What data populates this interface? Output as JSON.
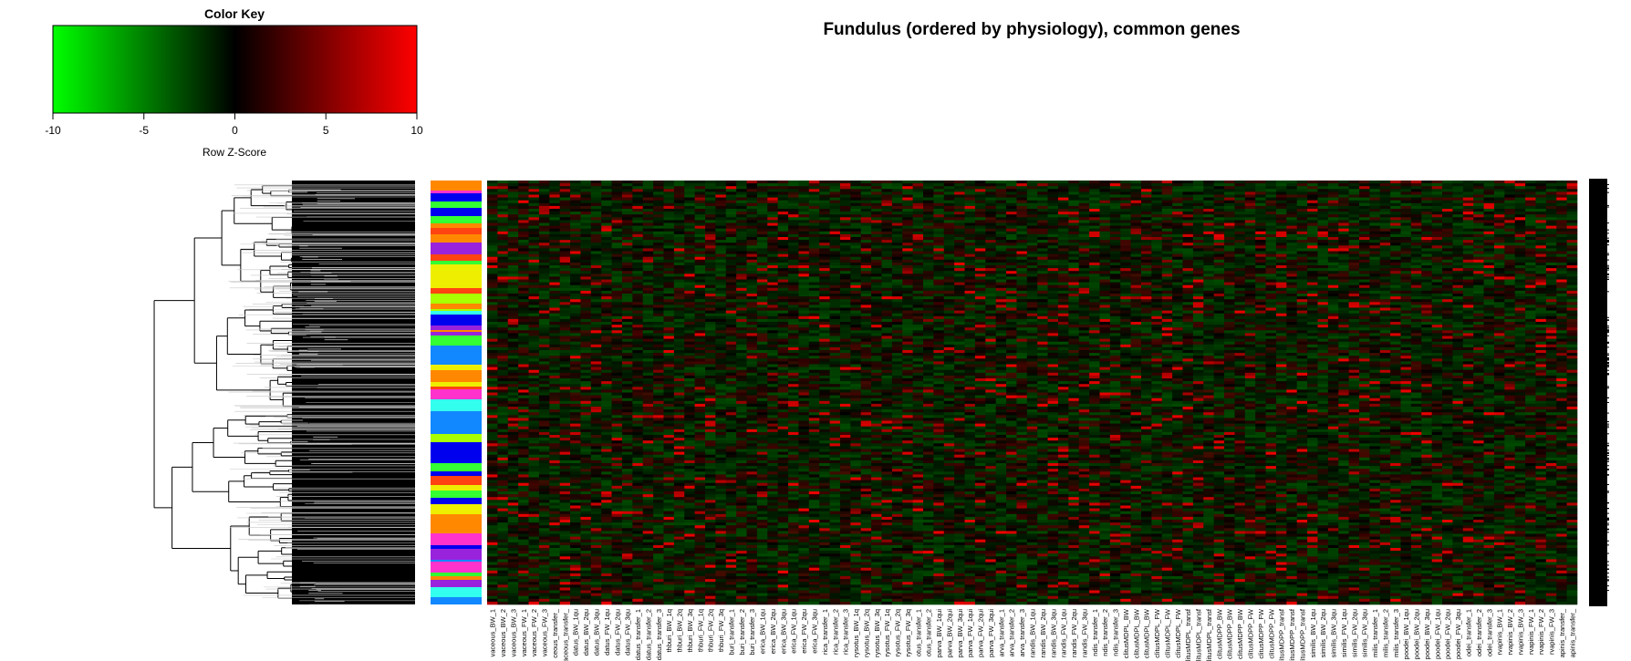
{
  "chart_data": {
    "type": "heatmap",
    "title": "Fundulus (ordered by physiology), common genes",
    "color_key": {
      "title": "Color Key",
      "xlabel": "Row Z-Score",
      "ticks": [
        -10,
        -5,
        0,
        5,
        10
      ],
      "range": [
        -10,
        10
      ],
      "colors": {
        "low": "#00ff00",
        "mid": "#000000",
        "high": "#ff0000"
      }
    },
    "row_dendrogram": true,
    "row_side_colors": [
      "#33ffee",
      "#ff33cc",
      "#eeee00",
      "#33ff33",
      "#ff4411",
      "#0000ee",
      "#1188ff",
      "#9922dd",
      "#ff8800",
      "#aaff00"
    ],
    "column_labels": [
      "vaceous_BW_1",
      "vaceous_BW_2",
      "vaceous_BW_3",
      "vaceous_FW_1",
      "vaceous_FW_2",
      "vaceous_FW_3",
      "ceous_transfer_",
      "vaceous_transfer_",
      "datus_BW_1qu",
      "datus_BW_2qu",
      "datus_BW_3qu",
      "datus_FW_1qu",
      "datus_FW_2qu",
      "datus_FW_3qu",
      "datus_transfer_1",
      "datus_transfer_2",
      "datus_transfer_3",
      "thburi_BW_1q",
      "thburi_BW_2q",
      "thburi_BW_3q",
      "thburi_FW_1q",
      "thburi_FW_2q",
      "thburi_FW_3q",
      "buri_transfer_1",
      "buri_transfer_2",
      "buri_transfer_3",
      "erica_BW_1qu",
      "erica_BW_2qu",
      "erica_BW_3qu",
      "erica_FW_1qu",
      "erica_FW_2qu",
      "erica_FW_3qu",
      "rica_transfer_1",
      "rica_transfer_2",
      "rica_transfer_3",
      "rysotus_BW_1q",
      "rysotus_BW_2q",
      "rysotus_BW_3q",
      "rysotus_FW_1q",
      "rysotus_FW_2q",
      "rysotus_FW_3q",
      "otus_transfer_1",
      "otus_transfer_2",
      "parva_BW_1qui",
      "parva_BW_2qui",
      "parva_BW_3qui",
      "parva_FW_1qui",
      "parva_FW_2qui",
      "parva_FW_3qui",
      "arva_transfer_1",
      "arva_transfer_2",
      "arva_transfer_3",
      "randis_BW_1qu",
      "randis_BW_2qu",
      "randis_BW_3qu",
      "randis_FW_1qu",
      "randis_FW_2qu",
      "randis_FW_3qu",
      "ndis_transfer_1",
      "ndis_transfer_2",
      "ndis_transfer_3",
      "clitusMDPL_BW",
      "clitusMDPL_BW",
      "clitusMDPL_BW",
      "clitusMDPL_FW",
      "clitusMDPL_FW",
      "clitusMDPL_FW",
      "litusMDPL_transf",
      "litusMDPL_transf",
      "litusMDPL_transf",
      "clitusMDPP_BW",
      "clitusMDPP_BW",
      "clitusMDPP_BW",
      "clitusMDPP_FW",
      "clitusMDPP_FW",
      "clitusMDPP_FW",
      "litusMDPP_transf",
      "litusMDPP_transf",
      "litusMDPP_transf",
      "similis_BW_1qu",
      "similis_BW_2qu",
      "similis_BW_3qu",
      "similis_FW_1qu",
      "similis_FW_2qu",
      "similis_FW_3qu",
      "milis_transfer_1",
      "milis_transfer_2",
      "milis_transfer_3",
      "poodei_BW_1qu",
      "poodei_BW_2qu",
      "poodei_BW_3qu",
      "poodei_FW_1qu",
      "poodei_FW_2qu",
      "poodei_FW_3qu",
      "odei_transfer_1",
      "odei_transfer_2",
      "odei_transfer_3",
      "rvapinis_BW_1",
      "rvapinis_BW_2",
      "rvapinis_BW_3",
      "rvapinis_FW_1",
      "rvapinis_FW_2",
      "rvapinis_FW_3",
      "apinis_transfer_",
      "apinis_transfer_"
    ]
  }
}
